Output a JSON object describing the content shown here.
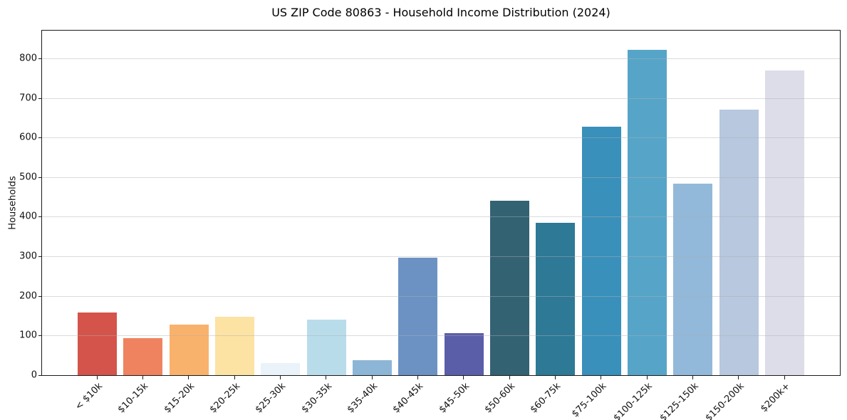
{
  "chart_data": {
    "type": "bar",
    "title": "US ZIP Code 80863 - Household Income Distribution (2024)",
    "xlabel": "",
    "ylabel": "Households",
    "categories": [
      "< $10k",
      "$10-15k",
      "$15-20k",
      "$20-25k",
      "$25-30k",
      "$30-35k",
      "$35-40k",
      "$40-45k",
      "$45-50k",
      "$50-60k",
      "$60-75k",
      "$75-100k",
      "$100-125k",
      "$125-150k",
      "$150-200k",
      "$200k+"
    ],
    "values": [
      158,
      94,
      127,
      147,
      31,
      141,
      38,
      296,
      106,
      441,
      385,
      628,
      822,
      484,
      670,
      770
    ],
    "bar_colors": [
      "#d4544b",
      "#ef8360",
      "#f9b26c",
      "#fce3a4",
      "#e9f3f9",
      "#b9dcea",
      "#8db6d6",
      "#6c92c4",
      "#5a5ea9",
      "#336273",
      "#2e7996",
      "#3990bb",
      "#56a5c9",
      "#92b9d9",
      "#b7c8df",
      "#dcdde9"
    ],
    "ylim": [
      0,
      870
    ],
    "yticks": [
      0,
      100,
      200,
      300,
      400,
      500,
      600,
      700,
      800
    ],
    "grid": "horizontal-over-bars",
    "legend": "none",
    "background": "#ffffff",
    "spine_color": "#1b1b1b"
  }
}
